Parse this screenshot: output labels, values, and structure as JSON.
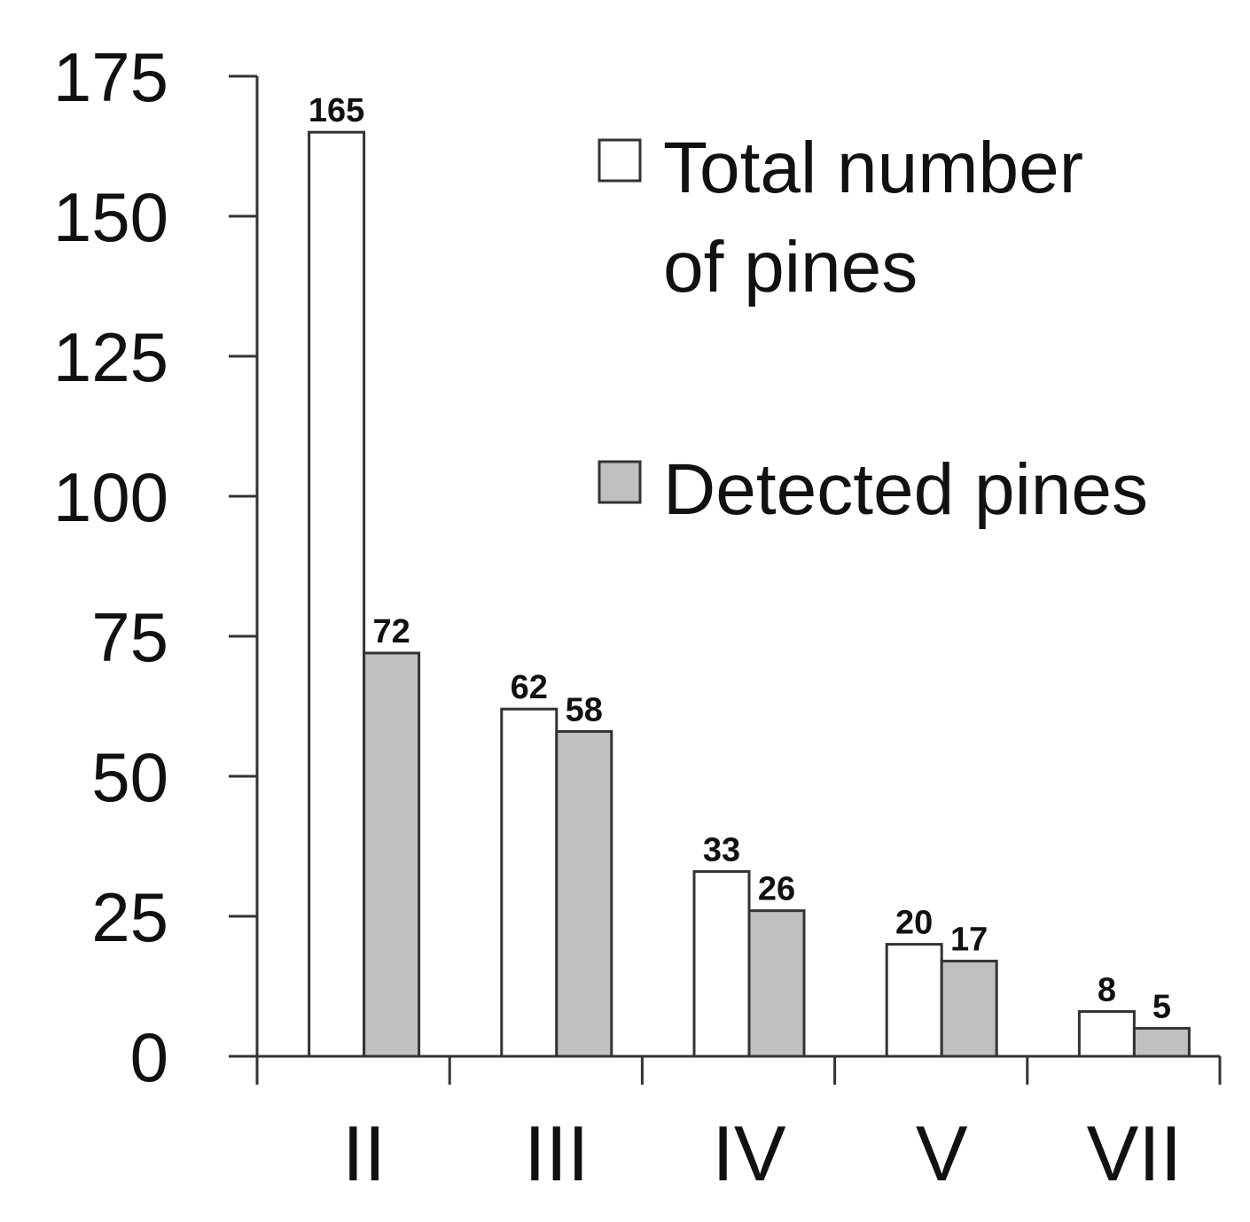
{
  "chart_data": {
    "type": "bar",
    "categories": [
      "II",
      "III",
      "IV",
      "V",
      "VII"
    ],
    "series": [
      {
        "name": "Total number of pines",
        "legend_lines": [
          "Total number",
          "of pines"
        ],
        "color": "#ffffff",
        "values": [
          165,
          62,
          33,
          20,
          8
        ]
      },
      {
        "name": "Detected pines",
        "legend_lines": [
          "Detected pines"
        ],
        "color": "#c0c0c0",
        "values": [
          72,
          58,
          26,
          17,
          5
        ]
      }
    ],
    "ylim": [
      0,
      175
    ],
    "yticks": [
      0,
      25,
      50,
      75,
      100,
      125,
      150,
      175
    ],
    "xlabel": "",
    "ylabel": "",
    "title": "",
    "legend_position": "top-right",
    "bar_stroke": "#333333",
    "grid": false
  }
}
